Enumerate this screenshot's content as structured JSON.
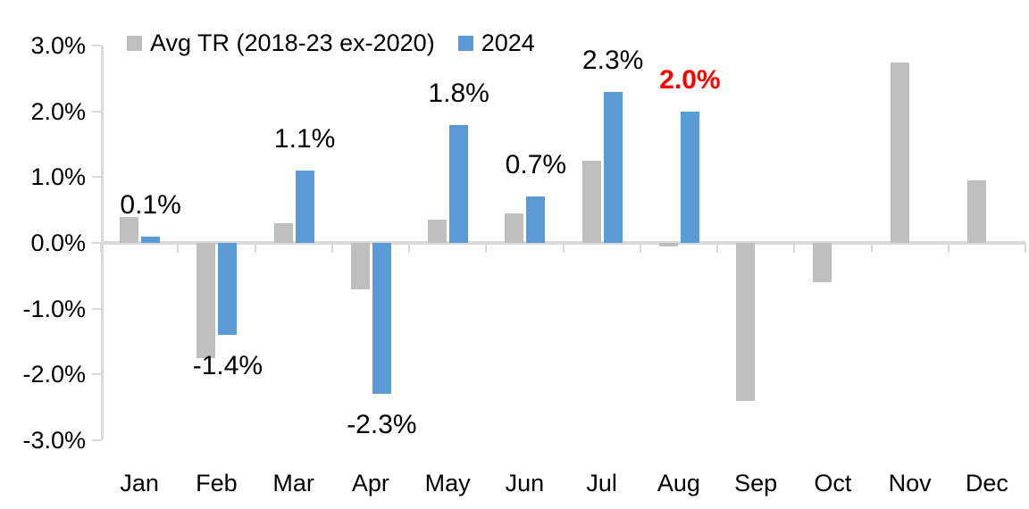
{
  "chart_data": {
    "type": "bar",
    "title": "",
    "categories": [
      "Jan",
      "Feb",
      "Mar",
      "Apr",
      "May",
      "Jun",
      "Jul",
      "Aug",
      "Sep",
      "Oct",
      "Nov",
      "Dec"
    ],
    "series": [
      {
        "name": "Avg TR (2018-23 ex-2020)",
        "color": "#BFBFBF",
        "values": [
          0.4,
          -1.75,
          0.3,
          -0.7,
          0.35,
          0.45,
          1.25,
          -0.05,
          -2.4,
          -0.6,
          2.75,
          0.95
        ]
      },
      {
        "name": "2024",
        "color": "#5B9BD5",
        "values": [
          0.1,
          -1.4,
          1.1,
          -2.3,
          1.8,
          0.7,
          2.3,
          2.0,
          null,
          null,
          null,
          null
        ],
        "data_labels": [
          "0.1%",
          "-1.4%",
          "1.1%",
          "-2.3%",
          "1.8%",
          "0.7%",
          "2.3%",
          "2.0%",
          "",
          "",
          "",
          ""
        ],
        "label_highlight": {
          "index": 7,
          "color": "#FF0000",
          "bold": true
        }
      }
    ],
    "ylim": [
      -3,
      3
    ],
    "ytick_values": [
      3,
      2,
      1,
      0,
      -1,
      -2,
      -3
    ],
    "ytick_labels": [
      "3.0%",
      "2.0%",
      "1.0%",
      "0.0%",
      "-1.0%",
      "-2.0%",
      "-3.0%"
    ],
    "grid": false,
    "legend_position": "top",
    "axis_color": "#D9D9D9",
    "text_color": "#000000"
  }
}
